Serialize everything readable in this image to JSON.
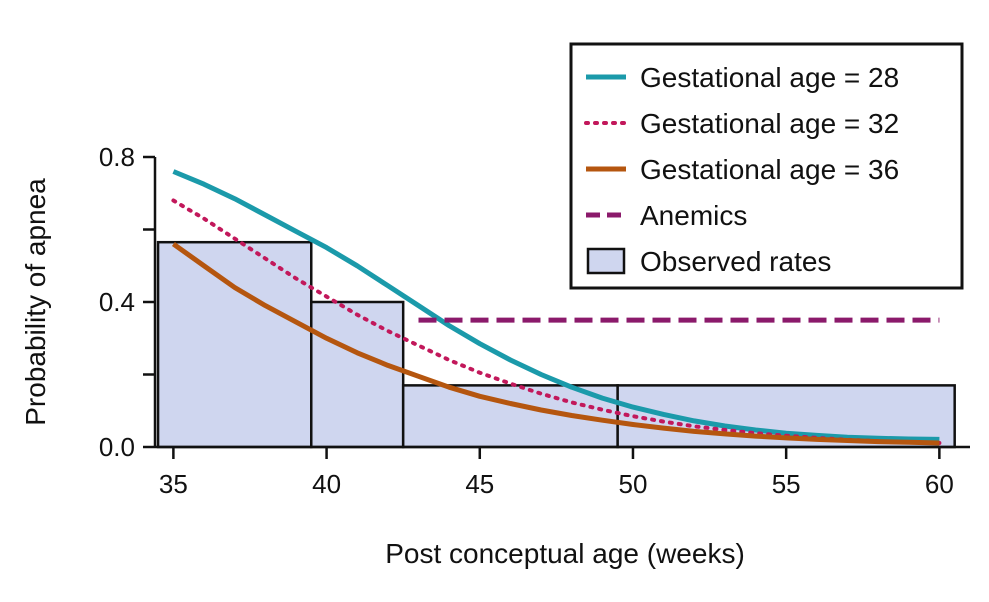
{
  "chart_data": {
    "type": "line",
    "xlabel": "Post conceptual age (weeks)",
    "ylabel": "Probability of apnea",
    "xlim": [
      34.4,
      61
    ],
    "ylim": [
      0,
      0.8
    ],
    "x_ticks": [
      35,
      40,
      45,
      50,
      55,
      60
    ],
    "x_tick_labels": [
      "35",
      "40",
      "45",
      "50",
      "55",
      "60"
    ],
    "y_ticks": [
      0,
      0.2,
      0.4,
      0.6,
      0.8
    ],
    "y_tick_labels": [
      "0.0",
      "",
      "0.4",
      "",
      "0.8"
    ],
    "x": [
      35,
      36,
      37,
      38,
      39,
      40,
      41,
      42,
      43,
      44,
      45,
      46,
      47,
      48,
      49,
      50,
      51,
      52,
      53,
      54,
      55,
      56,
      57,
      58,
      59,
      60
    ],
    "series": [
      {
        "name": "Gestational age = 28",
        "color": "#1b9aaa",
        "style": "solid",
        "values": [
          0.76,
          0.725,
          0.685,
          0.64,
          0.595,
          0.55,
          0.5,
          0.445,
          0.39,
          0.335,
          0.285,
          0.24,
          0.2,
          0.165,
          0.135,
          0.11,
          0.09,
          0.072,
          0.058,
          0.047,
          0.038,
          0.032,
          0.027,
          0.024,
          0.022,
          0.021
        ]
      },
      {
        "name": "Gestational age = 32",
        "color": "#c2185b",
        "style": "dotted",
        "values": [
          0.68,
          0.63,
          0.575,
          0.52,
          0.465,
          0.415,
          0.365,
          0.32,
          0.28,
          0.24,
          0.205,
          0.175,
          0.147,
          0.123,
          0.103,
          0.085,
          0.07,
          0.057,
          0.047,
          0.038,
          0.031,
          0.025,
          0.02,
          0.016,
          0.013,
          0.011
        ]
      },
      {
        "name": "Gestational age = 36",
        "color": "#b5560f",
        "style": "solid",
        "values": [
          0.56,
          0.5,
          0.44,
          0.39,
          0.345,
          0.3,
          0.26,
          0.225,
          0.195,
          0.165,
          0.14,
          0.12,
          0.102,
          0.087,
          0.074,
          0.062,
          0.052,
          0.043,
          0.036,
          0.03,
          0.025,
          0.021,
          0.018,
          0.015,
          0.013,
          0.011
        ]
      },
      {
        "name": "Anemics",
        "color": "#8b1a6b",
        "style": "dashed",
        "x": [
          43,
          60
        ],
        "values": [
          0.35,
          0.35
        ]
      }
    ],
    "observed_rates": {
      "name": "Observed rates",
      "color": "#cfd6ef",
      "bins": [
        {
          "x0": 34.5,
          "x1": 39.5,
          "value": 0.565
        },
        {
          "x0": 39.5,
          "x1": 42.5,
          "value": 0.4
        },
        {
          "x0": 42.5,
          "x1": 49.5,
          "value": 0.17
        },
        {
          "x0": 49.5,
          "x1": 60.5,
          "value": 0.17
        }
      ]
    },
    "legend_position": "top-right",
    "grid": false
  }
}
